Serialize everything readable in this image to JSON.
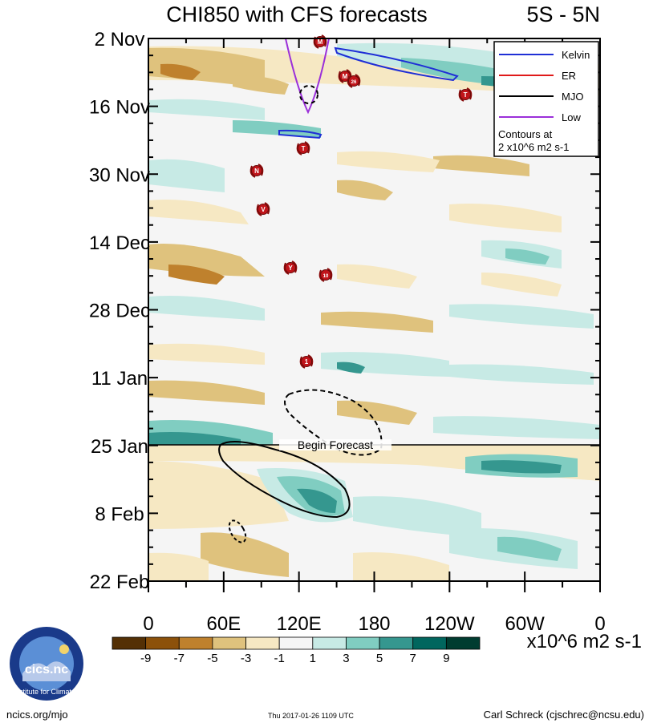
{
  "chart_data": {
    "type": "heatmap",
    "title": "CHI850 with CFS forecasts",
    "region": "5S - 5N",
    "y_dates": [
      "2 Nov",
      "16 Nov",
      "30 Nov",
      "14 Dec",
      "28 Dec",
      "11 Jan",
      "25 Jan",
      "8 Feb",
      "22 Feb"
    ],
    "x_longitudes": [
      "0",
      "60E",
      "120E",
      "180",
      "120W",
      "60W",
      "0"
    ],
    "legend": [
      {
        "label": "Kelvin",
        "color": "#1f2fd6"
      },
      {
        "label": "ER",
        "color": "#e01a1a"
      },
      {
        "label": "MJO",
        "color": "#000000"
      },
      {
        "label": "Low",
        "color": "#9b30d9"
      }
    ],
    "contour_note": [
      "Contours at",
      "2 x10^6 m2 s-1"
    ],
    "forecast_marker": "Begin Forecast",
    "colorbar": {
      "ticks": [
        "-9",
        "-7",
        "-5",
        "-3",
        "-1",
        "1",
        "3",
        "5",
        "7",
        "9"
      ],
      "colors": [
        "#543005",
        "#8c510a",
        "#bf812d",
        "#dfc27d",
        "#f6e8c3",
        "#f5f5f5",
        "#c7eae5",
        "#80cdc1",
        "#35978f",
        "#01665e",
        "#003c30"
      ],
      "units": "x10^6 m2 s-1"
    },
    "storms": [
      "M",
      "M",
      "26",
      "T",
      "T",
      "N",
      "V",
      "Y",
      "10",
      "1"
    ]
  },
  "footer": {
    "website": "ncics.org/mjo",
    "timestamp": "Thu 2017-01-26 1109 UTC",
    "author": "Carl Schreck (cjschrec@ncsu.edu)",
    "logo_text": "cics.nc",
    "logo_ring": "Cooperative Institute for Climate and Satellites"
  }
}
